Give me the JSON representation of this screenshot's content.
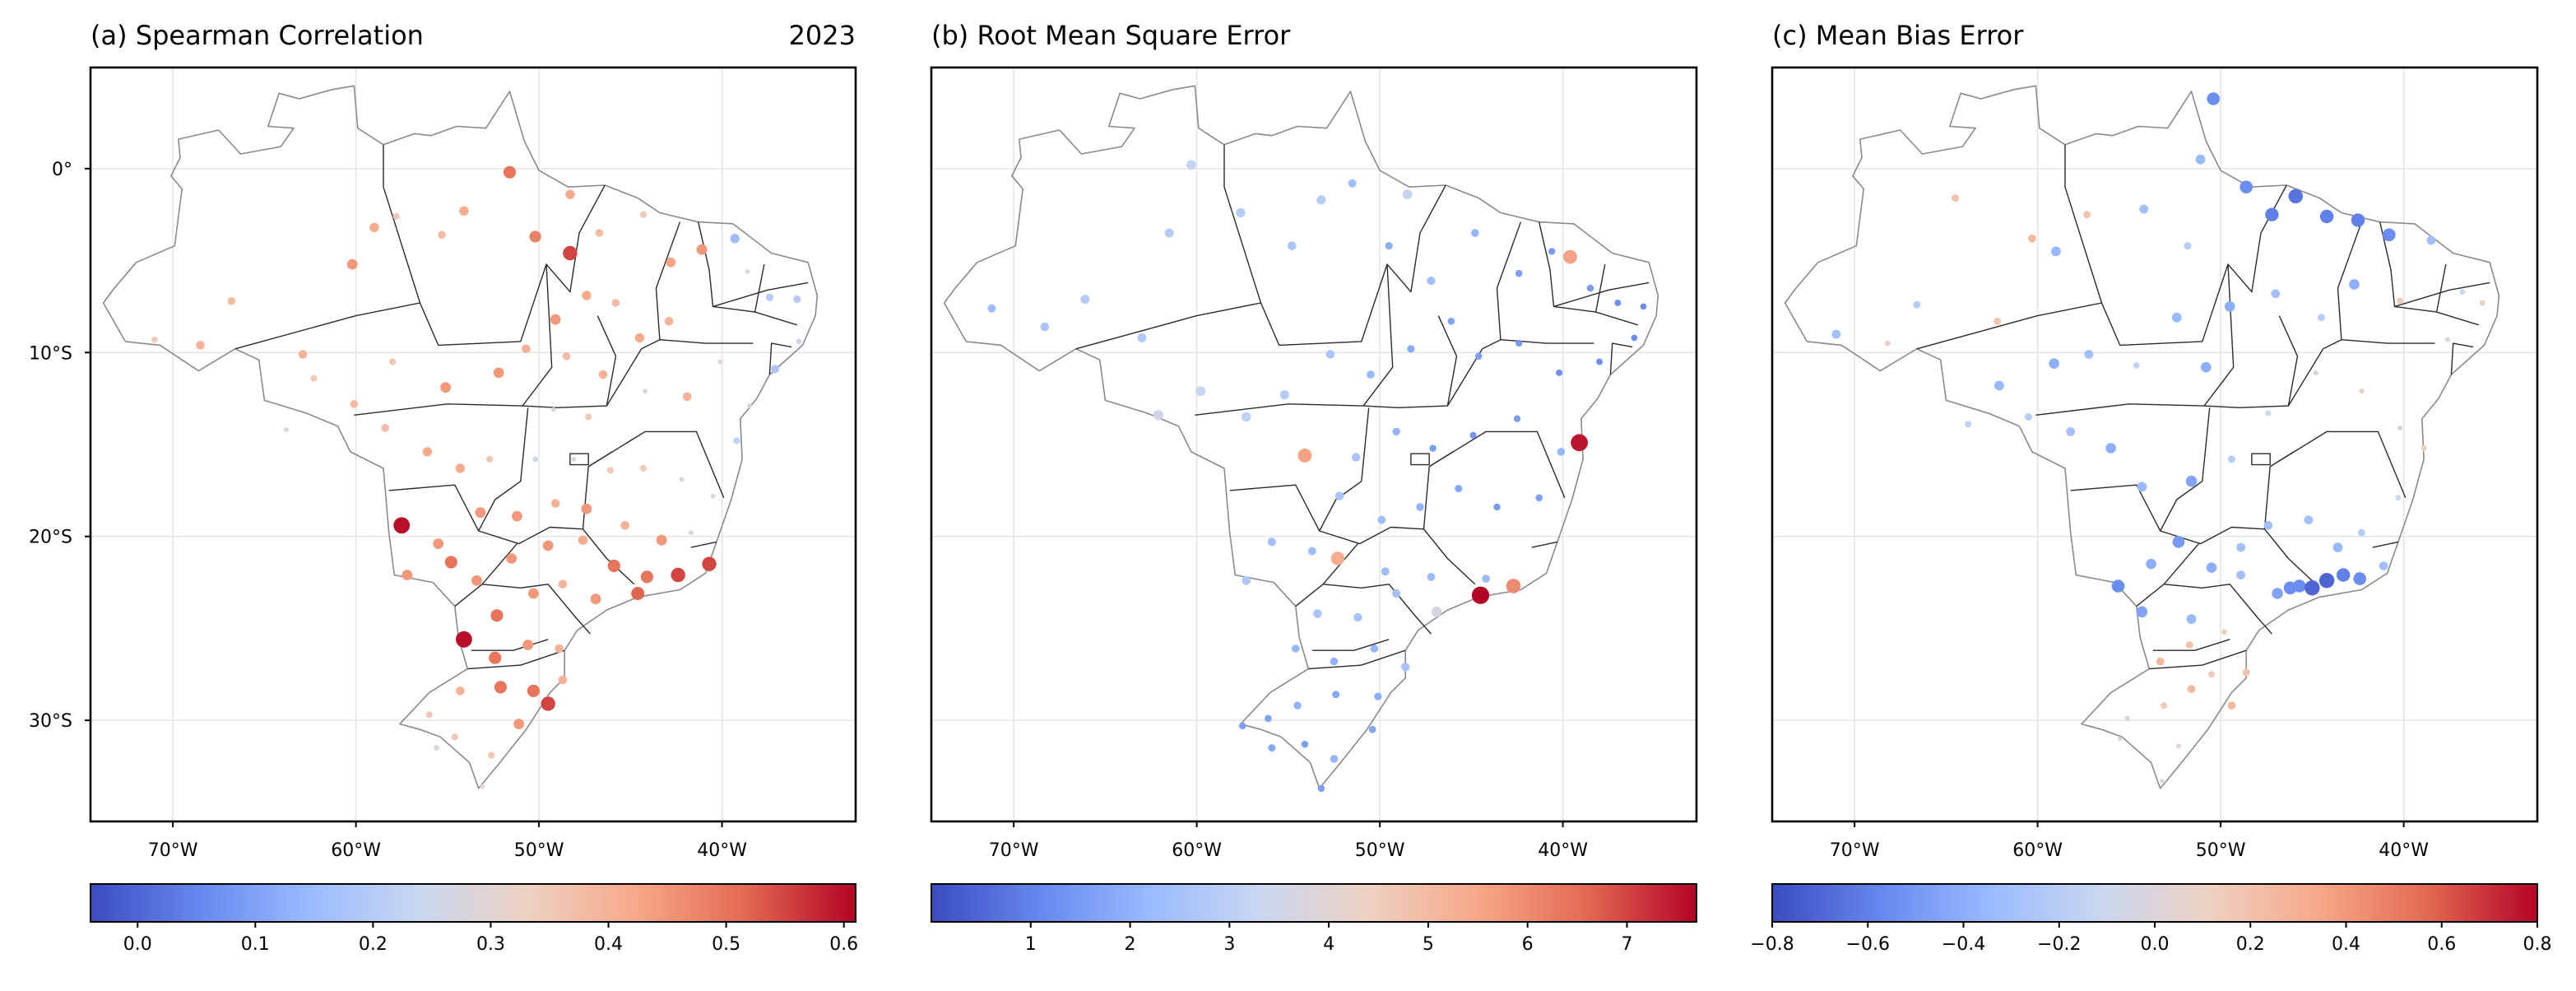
{
  "figure": {
    "year_label": "2023"
  },
  "colormap": {
    "name": "coolwarm",
    "stops": [
      "#3b4cc0",
      "#6788ee",
      "#9abbff",
      "#c9d7f0",
      "#edd1c2",
      "#f7a889",
      "#e26952",
      "#b40426"
    ]
  },
  "axes": {
    "lon_ticks": [
      "70°W",
      "60°W",
      "50°W",
      "40°W"
    ],
    "lat_ticks": [
      "0°",
      "10°S",
      "20°S",
      "30°S"
    ]
  },
  "chart_data": [
    {
      "type": "scatter",
      "title": "(a) Spearman Correlation",
      "x_label": "",
      "y_label": "",
      "lon_range": [
        -74.5,
        -32.7
      ],
      "lat_range": [
        -35.5,
        5.5
      ],
      "colorbar": {
        "range": [
          -0.04,
          0.61
        ],
        "ticks": [
          "0.0",
          "0.1",
          "0.2",
          "0.3",
          "0.4",
          "0.5",
          "0.6"
        ]
      },
      "points": [
        [
          -71,
          -9.3,
          0.34
        ],
        [
          -68.5,
          -9.6,
          0.4
        ],
        [
          -66.8,
          -7.2,
          0.38
        ],
        [
          -62.9,
          -10.1,
          0.4
        ],
        [
          -60.2,
          -5.2,
          0.45
        ],
        [
          -59,
          -3.2,
          0.42
        ],
        [
          -57.8,
          -2.6,
          0.35
        ],
        [
          -55.3,
          -3.6,
          0.38
        ],
        [
          -54.1,
          -2.3,
          0.42
        ],
        [
          -51.6,
          -0.2,
          0.5
        ],
        [
          -50.2,
          -3.7,
          0.48
        ],
        [
          -48.3,
          -1.4,
          0.42
        ],
        [
          -48.3,
          -4.6,
          0.55
        ],
        [
          -46.7,
          -3.5,
          0.38
        ],
        [
          -44.3,
          -2.5,
          0.35
        ],
        [
          -42.8,
          -5.1,
          0.43
        ],
        [
          -41.1,
          -4.4,
          0.45
        ],
        [
          -39.3,
          -3.8,
          0.15
        ],
        [
          -38.6,
          -5.6,
          0.3
        ],
        [
          -37.4,
          -7,
          0.2
        ],
        [
          -35.9,
          -7.1,
          0.2
        ],
        [
          -35.8,
          -9.4,
          0.25
        ],
        [
          -37.1,
          -10.9,
          0.18
        ],
        [
          -38.5,
          -12.9,
          0.3
        ],
        [
          -40.1,
          -10.5,
          0.3
        ],
        [
          -39.2,
          -14.8,
          0.22
        ],
        [
          -41.9,
          -12.4,
          0.4
        ],
        [
          -42.9,
          -8.3,
          0.4
        ],
        [
          -44.5,
          -9.2,
          0.42
        ],
        [
          -45.8,
          -7.3,
          0.38
        ],
        [
          -47.4,
          -6.9,
          0.42
        ],
        [
          -49.1,
          -8.2,
          0.45
        ],
        [
          -50.7,
          -9.8,
          0.4
        ],
        [
          -48.5,
          -10.2,
          0.38
        ],
        [
          -46.5,
          -11.2,
          0.4
        ],
        [
          -44.2,
          -12.1,
          0.3
        ],
        [
          -47.3,
          -13.5,
          0.35
        ],
        [
          -49.2,
          -13.1,
          0.3
        ],
        [
          -52.2,
          -11.1,
          0.45
        ],
        [
          -55.1,
          -11.9,
          0.45
        ],
        [
          -58,
          -10.5,
          0.35
        ],
        [
          -60.1,
          -12.8,
          0.38
        ],
        [
          -62.3,
          -11.4,
          0.35
        ],
        [
          -63.8,
          -14.2,
          0.3
        ],
        [
          -58.4,
          -14.1,
          0.38
        ],
        [
          -56.1,
          -15.4,
          0.42
        ],
        [
          -54.3,
          -16.3,
          0.42
        ],
        [
          -52.7,
          -15.8,
          0.35
        ],
        [
          -50.2,
          -15.8,
          0.25
        ],
        [
          -48.1,
          -15.8,
          0.3
        ],
        [
          -46.1,
          -16.4,
          0.35
        ],
        [
          -44.3,
          -16.3,
          0.35
        ],
        [
          -42.2,
          -16.9,
          0.3
        ],
        [
          -40.5,
          -17.8,
          0.3
        ],
        [
          -41.7,
          -19.8,
          0.3
        ],
        [
          -43.3,
          -20.2,
          0.45
        ],
        [
          -45.3,
          -19.4,
          0.4
        ],
        [
          -47.4,
          -18.5,
          0.45
        ],
        [
          -49.1,
          -18.2,
          0.4
        ],
        [
          -51.2,
          -18.9,
          0.45
        ],
        [
          -53.2,
          -18.7,
          0.45
        ],
        [
          -55.5,
          -20.4,
          0.45
        ],
        [
          -57.5,
          -19.4,
          0.6
        ],
        [
          -57.2,
          -22.1,
          0.45
        ],
        [
          -54.8,
          -21.4,
          0.5
        ],
        [
          -53.4,
          -22.4,
          0.45
        ],
        [
          -51.5,
          -21.2,
          0.45
        ],
        [
          -49.5,
          -20.5,
          0.45
        ],
        [
          -47.6,
          -20.2,
          0.42
        ],
        [
          -45.9,
          -21.6,
          0.5
        ],
        [
          -44.1,
          -22.2,
          0.5
        ],
        [
          -42.4,
          -22.1,
          0.55
        ],
        [
          -40.7,
          -21.5,
          0.55
        ],
        [
          -44.6,
          -23.1,
          0.52
        ],
        [
          -46.9,
          -23.4,
          0.45
        ],
        [
          -48.7,
          -22.6,
          0.4
        ],
        [
          -50.3,
          -23.1,
          0.45
        ],
        [
          -52.3,
          -24.3,
          0.5
        ],
        [
          -54.1,
          -25.6,
          0.6
        ],
        [
          -52.4,
          -26.6,
          0.5
        ],
        [
          -50.6,
          -25.9,
          0.45
        ],
        [
          -48.9,
          -26.1,
          0.4
        ],
        [
          -50.3,
          -28.4,
          0.5
        ],
        [
          -52.1,
          -28.2,
          0.5
        ],
        [
          -54.3,
          -28.4,
          0.4
        ],
        [
          -56,
          -29.7,
          0.35
        ],
        [
          -54.6,
          -30.9,
          0.35
        ],
        [
          -52.6,
          -31.9,
          0.35
        ],
        [
          -51.1,
          -30.2,
          0.45
        ],
        [
          -49.5,
          -29.1,
          0.55
        ],
        [
          -48.7,
          -27.8,
          0.4
        ],
        [
          -53.1,
          -33.6,
          0.3
        ],
        [
          -55.6,
          -31.5,
          0.25
        ]
      ]
    },
    {
      "type": "scatter",
      "title": "(b) Root Mean Square Error",
      "x_label": "",
      "y_label": "",
      "lon_range": [
        -74.5,
        -32.7
      ],
      "lat_range": [
        -35.5,
        5.5
      ],
      "colorbar": {
        "range": [
          0,
          7.7
        ],
        "ticks": [
          "1",
          "2",
          "3",
          "4",
          "5",
          "6",
          "7"
        ]
      },
      "points": [
        [
          -71.2,
          -7.6,
          2.3
        ],
        [
          -68.3,
          -8.6,
          2.6
        ],
        [
          -66.1,
          -7.1,
          2.8
        ],
        [
          -63,
          -9.2,
          2.7
        ],
        [
          -61.5,
          -3.5,
          2.8
        ],
        [
          -60.3,
          0.2,
          3.2
        ],
        [
          -57.6,
          -2.4,
          2.9
        ],
        [
          -54.8,
          -4.2,
          2.6
        ],
        [
          -53.2,
          -1.7,
          2.9
        ],
        [
          -51.5,
          -0.8,
          2.3
        ],
        [
          -49.5,
          -4.2,
          1.9
        ],
        [
          -48.5,
          -1.4,
          3.2
        ],
        [
          -47.2,
          -6.1,
          2.4
        ],
        [
          -44.8,
          -3.5,
          2.1
        ],
        [
          -42.4,
          -5.7,
          1.6
        ],
        [
          -40.6,
          -4.5,
          1.5
        ],
        [
          -39.6,
          -4.8,
          5.6
        ],
        [
          -38.5,
          -6.5,
          1.5
        ],
        [
          -37,
          -7.3,
          1.3
        ],
        [
          -35.6,
          -7.5,
          1.2
        ],
        [
          -36.1,
          -9.2,
          1.2
        ],
        [
          -38,
          -10.5,
          1.3
        ],
        [
          -40.2,
          -11.1,
          1.3
        ],
        [
          -42.4,
          -9.5,
          1.4
        ],
        [
          -44.6,
          -10.2,
          1.6
        ],
        [
          -46.1,
          -8.3,
          1.7
        ],
        [
          -48.3,
          -9.8,
          1.9
        ],
        [
          -50.5,
          -11.2,
          2.2
        ],
        [
          -52.7,
          -10.1,
          2.6
        ],
        [
          -55.2,
          -12.3,
          2.8
        ],
        [
          -57.3,
          -13.5,
          3.1
        ],
        [
          -59.8,
          -12.1,
          3.3
        ],
        [
          -62.1,
          -13.4,
          3.5
        ],
        [
          -54.1,
          -15.6,
          5.6
        ],
        [
          -51.3,
          -15.7,
          2.5
        ],
        [
          -49.1,
          -14.3,
          2.1
        ],
        [
          -47.1,
          -15.2,
          1.6
        ],
        [
          -44.9,
          -14.5,
          1.4
        ],
        [
          -42.5,
          -13.6,
          1.5
        ],
        [
          -40.1,
          -15.4,
          2.1
        ],
        [
          -39.1,
          -14.9,
          7.5
        ],
        [
          -41.3,
          -17.9,
          1.6
        ],
        [
          -43.6,
          -18.4,
          1.5
        ],
        [
          -45.7,
          -17.4,
          1.8
        ],
        [
          -47.8,
          -18.4,
          2
        ],
        [
          -49.9,
          -19.1,
          2.3
        ],
        [
          -52.2,
          -17.8,
          2.6
        ],
        [
          -53.7,
          -20.8,
          2.3
        ],
        [
          -55.9,
          -20.3,
          2.4
        ],
        [
          -57.3,
          -22.4,
          2.7
        ],
        [
          -52.3,
          -21.2,
          5.4
        ],
        [
          -49.7,
          -21.9,
          2.3
        ],
        [
          -47.2,
          -22.2,
          2.2
        ],
        [
          -44.2,
          -22.3,
          2.2
        ],
        [
          -42.7,
          -22.7,
          6
        ],
        [
          -44.5,
          -23.2,
          7.7
        ],
        [
          -46.9,
          -24.1,
          3.6
        ],
        [
          -49.1,
          -23.1,
          2.4
        ],
        [
          -51.2,
          -24.4,
          2.5
        ],
        [
          -53.4,
          -24.2,
          2.6
        ],
        [
          -54.6,
          -26.1,
          2.1
        ],
        [
          -52.5,
          -26.8,
          2
        ],
        [
          -50.3,
          -26.1,
          2.1
        ],
        [
          -48.6,
          -27.1,
          2.5
        ],
        [
          -50.1,
          -28.7,
          1.9
        ],
        [
          -52.4,
          -28.6,
          1.8
        ],
        [
          -54.5,
          -29.2,
          2
        ],
        [
          -56.1,
          -29.9,
          1.7
        ],
        [
          -54.1,
          -31.3,
          1.6
        ],
        [
          -52.5,
          -32.1,
          2.1
        ],
        [
          -50.4,
          -30.5,
          1.7
        ],
        [
          -53.2,
          -33.7,
          1.6
        ],
        [
          -55.9,
          -31.5,
          1.8
        ],
        [
          -57.5,
          -30.3,
          1.6
        ]
      ]
    },
    {
      "type": "scatter",
      "title": "(c) Mean Bias Error",
      "x_label": "",
      "y_label": "",
      "lon_range": [
        -74.5,
        -32.7
      ],
      "lat_range": [
        -35.5,
        5.5
      ],
      "colorbar": {
        "range": [
          -0.8,
          0.8
        ],
        "ticks": [
          "−0.8",
          "−0.6",
          "−0.4",
          "−0.2",
          "0.0",
          "0.2",
          "0.4",
          "0.6",
          "0.8"
        ]
      },
      "points": [
        [
          -71,
          -9,
          -0.3
        ],
        [
          -68.2,
          -9.5,
          0.1
        ],
        [
          -66.6,
          -7.4,
          -0.2
        ],
        [
          -64.5,
          -1.6,
          0.2
        ],
        [
          -62.2,
          -8.3,
          0.2
        ],
        [
          -60.3,
          -3.8,
          0.25
        ],
        [
          -59,
          -4.5,
          -0.35
        ],
        [
          -57.3,
          -2.5,
          0.2
        ],
        [
          -54.2,
          -2.2,
          -0.3
        ],
        [
          -51.1,
          0.5,
          -0.35
        ],
        [
          -50.4,
          3.8,
          -0.55
        ],
        [
          -51.8,
          -4.2,
          -0.2
        ],
        [
          -48.6,
          -1,
          -0.55
        ],
        [
          -47.2,
          -2.5,
          -0.6
        ],
        [
          -45.9,
          -1.5,
          -0.65
        ],
        [
          -44.2,
          -2.6,
          -0.6
        ],
        [
          -42.5,
          -2.8,
          -0.6
        ],
        [
          -40.8,
          -3.6,
          -0.55
        ],
        [
          -38.5,
          -3.9,
          -0.3
        ],
        [
          -36.8,
          -6.7,
          -0.1
        ],
        [
          -35.7,
          -7.3,
          0.1
        ],
        [
          -37.6,
          -9.3,
          0.05
        ],
        [
          -40.2,
          -7.2,
          0.15
        ],
        [
          -42.7,
          -6.3,
          -0.4
        ],
        [
          -44.5,
          -8.1,
          -0.2
        ],
        [
          -47,
          -6.8,
          -0.3
        ],
        [
          -49.5,
          -7.5,
          -0.4
        ],
        [
          -50.8,
          -10.8,
          -0.4
        ],
        [
          -52.4,
          -8.1,
          -0.35
        ],
        [
          -54.6,
          -10.7,
          -0.15
        ],
        [
          -57.2,
          -10.1,
          -0.3
        ],
        [
          -59.1,
          -10.6,
          -0.4
        ],
        [
          -62.1,
          -11.8,
          -0.35
        ],
        [
          -63.8,
          -13.9,
          -0.15
        ],
        [
          -60.5,
          -13.5,
          -0.2
        ],
        [
          -58.2,
          -14.3,
          -0.3
        ],
        [
          -56,
          -15.2,
          -0.4
        ],
        [
          -54.3,
          -17.3,
          -0.35
        ],
        [
          -51.6,
          -17,
          -0.45
        ],
        [
          -49.4,
          -15.8,
          -0.2
        ],
        [
          -47.4,
          -13.3,
          -0.1
        ],
        [
          -44.8,
          -11.1,
          0.05
        ],
        [
          -42.3,
          -12.1,
          0.05
        ],
        [
          -40.2,
          -14.1,
          0.05
        ],
        [
          -38.9,
          -15.2,
          0.1
        ],
        [
          -40.3,
          -17.9,
          -0.1
        ],
        [
          -42.3,
          -19.8,
          -0.2
        ],
        [
          -43.6,
          -20.6,
          -0.35
        ],
        [
          -45.2,
          -19.1,
          -0.3
        ],
        [
          -47.4,
          -19.4,
          -0.3
        ],
        [
          -48.9,
          -20.6,
          -0.3
        ],
        [
          -50.5,
          -21.7,
          -0.4
        ],
        [
          -52.3,
          -20.3,
          -0.5
        ],
        [
          -53.8,
          -21.5,
          -0.4
        ],
        [
          -55.6,
          -22.7,
          -0.55
        ],
        [
          -54.3,
          -24.1,
          -0.45
        ],
        [
          -51.6,
          -24.5,
          -0.35
        ],
        [
          -48.9,
          -22.1,
          -0.3
        ],
        [
          -46.9,
          -23.1,
          -0.45
        ],
        [
          -45.7,
          -22.7,
          -0.55
        ],
        [
          -45,
          -22.8,
          -0.7
        ],
        [
          -44.2,
          -22.4,
          -0.7
        ],
        [
          -43.3,
          -22.1,
          -0.6
        ],
        [
          -42.4,
          -22.3,
          -0.55
        ],
        [
          -41.1,
          -21.6,
          -0.3
        ],
        [
          -46.2,
          -22.8,
          -0.55
        ],
        [
          -49.8,
          -25.2,
          0.1
        ],
        [
          -51.7,
          -25.9,
          0.2
        ],
        [
          -53.3,
          -26.8,
          0.25
        ],
        [
          -50.5,
          -27.5,
          0.15
        ],
        [
          -48.6,
          -27.4,
          0.2
        ],
        [
          -51.6,
          -28.3,
          0.25
        ],
        [
          -53.1,
          -29.2,
          0.15
        ],
        [
          -55.1,
          -29.9,
          0.05
        ],
        [
          -49.4,
          -29.2,
          0.25
        ],
        [
          -52.3,
          -31.4,
          0.05
        ],
        [
          -53.2,
          -33.3,
          0
        ],
        [
          -55.5,
          -31,
          0
        ]
      ]
    }
  ]
}
